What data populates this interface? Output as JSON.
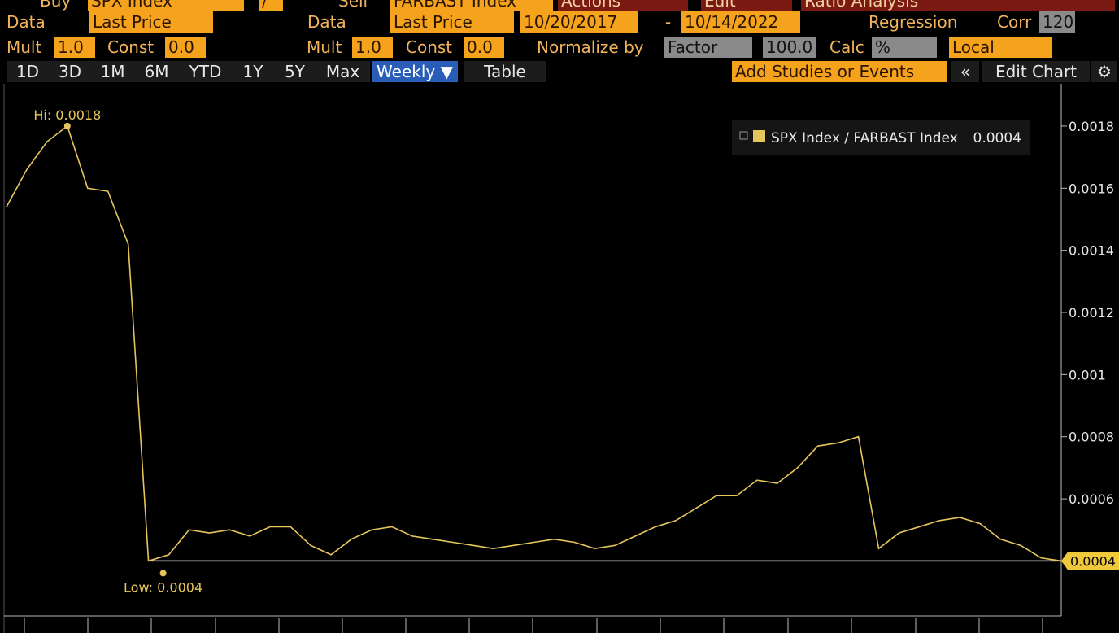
{
  "toolbar": {
    "row1": [
      "Buy",
      "SPX Index",
      "/",
      "Sell",
      "FARBAST Index",
      "Actions",
      "Edit",
      "Ratio Analysis"
    ],
    "row2": [
      "Data",
      "Last Price",
      "Data",
      "Last Price",
      "10/20/2017",
      "-",
      "10/14/2022",
      "Regression",
      "Corr",
      "120"
    ],
    "row3": [
      "Mult",
      "1.0",
      "Const",
      "0.0",
      "Mult",
      "1.0",
      "Const",
      "0.0",
      "Normalize by",
      "Factor",
      "100.0",
      "Calc",
      "%",
      "Local"
    ],
    "row4": [
      "1D",
      "3D",
      "1M",
      "6M",
      "YTD",
      "1Y",
      "5Y",
      "Max",
      "Weekly ▼",
      "Table",
      "Add Studies or Events",
      "«",
      "Edit Chart",
      "⚙"
    ]
  },
  "chart_data": {
    "type": "line",
    "series": [
      {
        "name": "SPX Index / FARBAST Index",
        "color": "#e6c65c",
        "values": [
          0.00154,
          0.00166,
          0.00175,
          0.0018,
          0.0016,
          0.00159,
          0.00142,
          0.0004,
          0.00042,
          0.0005,
          0.00049,
          0.0005,
          0.00048,
          0.00051,
          0.00051,
          0.00045,
          0.00042,
          0.00047,
          0.0005,
          0.00051,
          0.00048,
          0.00047,
          0.00046,
          0.00045,
          0.00044,
          0.00045,
          0.00046,
          0.00047,
          0.00046,
          0.00044,
          0.00045,
          0.00048,
          0.00051,
          0.00053,
          0.00057,
          0.00061,
          0.00061,
          0.00066,
          0.00065,
          0.0007,
          0.00077,
          0.00078,
          0.0008,
          0.00044,
          0.00049,
          0.00051,
          0.00053,
          0.00054,
          0.00052,
          0.00047,
          0.00045,
          0.00041,
          0.0004
        ]
      }
    ],
    "legend_value": "0.0004",
    "annotations": {
      "high": "Hi: 0.0018",
      "low": "Low: 0.0004",
      "last": "0.0004"
    },
    "ylim": [
      0.000223,
      0.001936
    ],
    "yticks": [
      0.0006,
      0.0008,
      0.001,
      0.0012,
      0.0014,
      0.0016,
      0.0018
    ]
  }
}
